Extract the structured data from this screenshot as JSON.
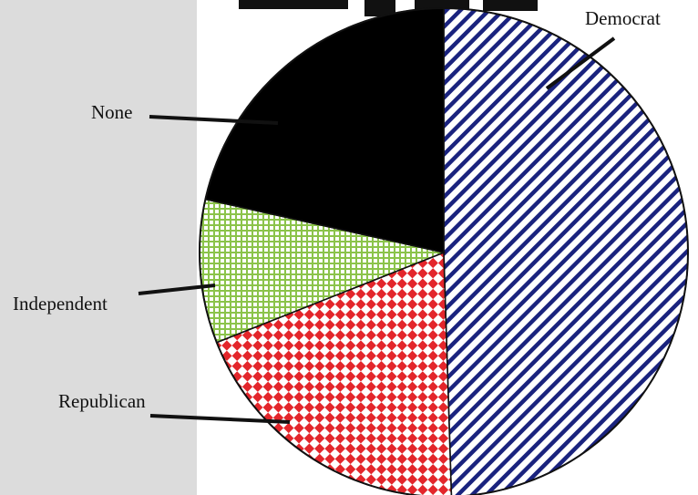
{
  "chart_data": {
    "type": "pie",
    "title": "",
    "slices": [
      {
        "label": "Democrat",
        "value": 49.5,
        "pattern": "diagonal-stripes",
        "color": "#1a237e"
      },
      {
        "label": "Republican",
        "value": 19.5,
        "pattern": "diamond-check",
        "color": "#e3262b"
      },
      {
        "label": "Independent",
        "value": 9.5,
        "pattern": "grid",
        "color": "#8bc34a"
      },
      {
        "label": "None",
        "value": 21.5,
        "pattern": "solid",
        "color": "#000000"
      }
    ],
    "legend": "none"
  }
}
